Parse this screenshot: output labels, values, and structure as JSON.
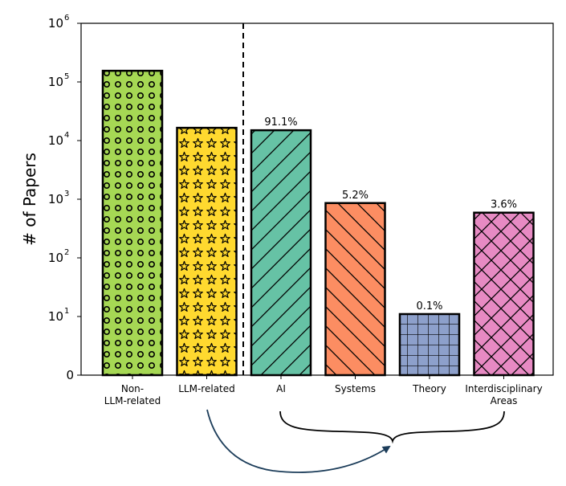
{
  "chart_data": {
    "type": "bar",
    "yscale": "symlog",
    "ylabel": "# of Papers",
    "ylim": [
      0,
      1000000
    ],
    "yticks": [
      {
        "value": 0,
        "base": "0",
        "exp": ""
      },
      {
        "value": 10,
        "base": "10",
        "exp": "1"
      },
      {
        "value": 100,
        "base": "10",
        "exp": "2"
      },
      {
        "value": 1000,
        "base": "10",
        "exp": "3"
      },
      {
        "value": 10000,
        "base": "10",
        "exp": "4"
      },
      {
        "value": 100000,
        "base": "10",
        "exp": "5"
      },
      {
        "value": 1000000,
        "base": "10",
        "exp": "6"
      }
    ],
    "grid": false,
    "bars": [
      {
        "category": [
          "Non-",
          "LLM-related"
        ],
        "value": 155000,
        "label": "",
        "color": "#a6d854",
        "hatch": "circles"
      },
      {
        "category": [
          "LLM-related"
        ],
        "value": 16500,
        "label": "",
        "color": "#ffd92f",
        "hatch": "stars"
      },
      {
        "category": [
          "AI"
        ],
        "value": 15000,
        "label": "91.1%",
        "color": "#66c2a5",
        "hatch": "forward-diagonal"
      },
      {
        "category": [
          "Systems"
        ],
        "value": 860,
        "label": "5.2%",
        "color": "#fc8d62",
        "hatch": "back-diagonal"
      },
      {
        "category": [
          "Theory"
        ],
        "value": 11,
        "label": "0.1%",
        "color": "#8da0cb",
        "hatch": "grid"
      },
      {
        "category": [
          "Interdisciplinary",
          "Areas"
        ],
        "value": 590,
        "label": "3.6%",
        "color": "#e78ac3",
        "hatch": "crosshatch"
      }
    ],
    "divider_after_index": 1,
    "annotation": {
      "type": "curly-brace-with-arrow",
      "from_category": "LLM-related",
      "brace_over": [
        "AI",
        "Systems",
        "Theory",
        "Interdisciplinary Areas"
      ]
    }
  }
}
